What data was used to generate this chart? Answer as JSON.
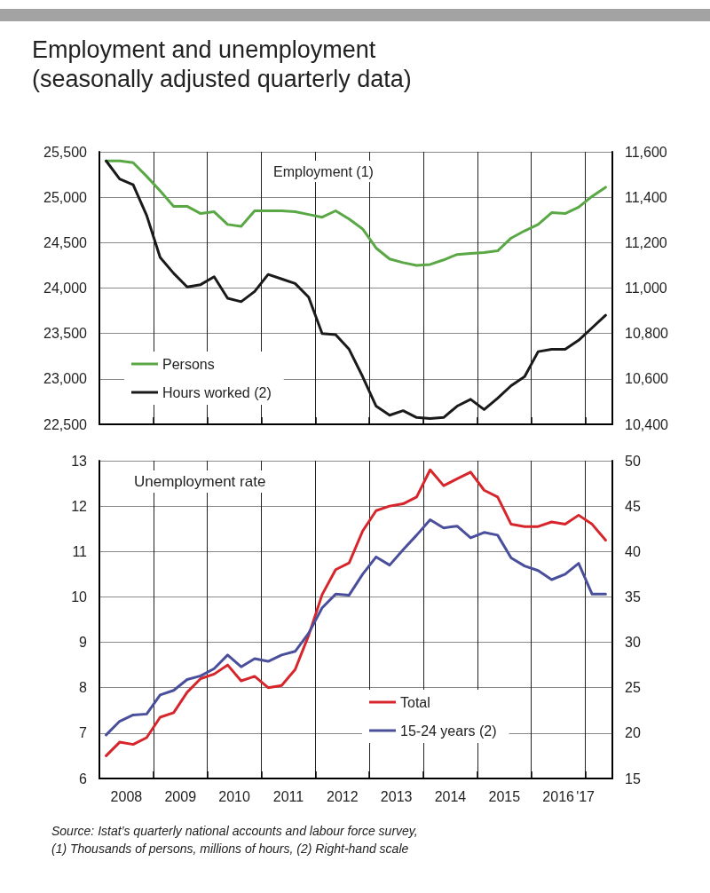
{
  "chart_data": [
    {
      "type": "line",
      "title": "Employment and unemployment",
      "subtitle": "(seasonally adjusted quarterly data)",
      "annotations": [
        "Employment (1)"
      ],
      "x": [
        2008.125,
        2008.375,
        2008.625,
        2008.875,
        2009.125,
        2009.375,
        2009.625,
        2009.875,
        2010.125,
        2010.375,
        2010.625,
        2010.875,
        2011.125,
        2011.375,
        2011.625,
        2011.875,
        2012.125,
        2012.375,
        2012.625,
        2012.875,
        2013.125,
        2013.375,
        2013.625,
        2013.875,
        2014.125,
        2014.375,
        2014.625,
        2014.875,
        2015.125,
        2015.375,
        2015.625,
        2015.875,
        2016.125,
        2016.375,
        2016.625,
        2016.875,
        2017.125,
        2017.375
      ],
      "xlim": [
        2008,
        2017.5
      ],
      "xticks": [
        {
          "value": 2009,
          "label": null
        },
        {
          "value": 2010,
          "label": null
        },
        {
          "value": 2011,
          "label": null
        },
        {
          "value": 2012,
          "label": null
        },
        {
          "value": 2013,
          "label": null
        },
        {
          "value": 2014,
          "label": null
        },
        {
          "value": 2015,
          "label": null
        },
        {
          "value": 2016,
          "label": null
        },
        {
          "value": 2017,
          "label": null
        }
      ],
      "ylim": [
        22500,
        25500
      ],
      "yticks": [
        {
          "value": 22500,
          "label": "22,500"
        },
        {
          "value": 23000,
          "label": "23,000"
        },
        {
          "value": 23500,
          "label": "23,500"
        },
        {
          "value": 24000,
          "label": "24,000"
        },
        {
          "value": 24500,
          "label": "24,500"
        },
        {
          "value": 25000,
          "label": "25,000"
        },
        {
          "value": 25500,
          "label": "25,500"
        }
      ],
      "y2lim": [
        10400,
        11600
      ],
      "y2ticks": [
        {
          "value": 10400,
          "label": "10,400"
        },
        {
          "value": 10600,
          "label": "10,600"
        },
        {
          "value": 10800,
          "label": "10,800"
        },
        {
          "value": 11000,
          "label": "11,000"
        },
        {
          "value": 11200,
          "label": "11,200"
        },
        {
          "value": 11400,
          "label": "11,400"
        },
        {
          "value": 11600,
          "label": "11,600"
        }
      ],
      "series": [
        {
          "name": "Persons",
          "color": "#5aa845",
          "values": [
            25400,
            25400,
            25380,
            25230,
            25070,
            24900,
            24900,
            24820,
            24840,
            24700,
            24680,
            24850,
            24850,
            24850,
            24840,
            24810,
            24780,
            24850,
            24760,
            24650,
            24440,
            24320,
            24280,
            24250,
            24260,
            24310,
            24370,
            24380,
            24390,
            24410,
            24550,
            24630,
            24700,
            24830,
            24820,
            24890,
            25010,
            25110
          ]
        },
        {
          "name": "Hours worked (2)",
          "color": "#1a1a1a",
          "axis": "y2",
          "values": [
            11560,
            11480,
            11455,
            11320,
            11135,
            11065,
            11005,
            11015,
            11050,
            10955,
            10940,
            10985,
            11060,
            11040,
            11020,
            10960,
            10800,
            10795,
            10730,
            10610,
            10480,
            10440,
            10460,
            10430,
            10425,
            10430,
            10480,
            10510,
            10465,
            10515,
            10570,
            10610,
            10720,
            10730,
            10730,
            10770,
            10825,
            10880
          ]
        }
      ],
      "grid": true,
      "legend": "bottom left",
      "marker": "none",
      "line_style": "solid",
      "tick_labels": "y"
    },
    {
      "type": "line",
      "title": "Unemployment rate",
      "annotations": [
        "Source: Istat’s quarterly national accounts and labour force survey,",
        "(1) Thousands of persons, millions of hours, (2) Right-hand scale"
      ],
      "x": [
        2008.125,
        2008.375,
        2008.625,
        2008.875,
        2009.125,
        2009.375,
        2009.625,
        2009.875,
        2010.125,
        2010.375,
        2010.625,
        2010.875,
        2011.125,
        2011.375,
        2011.625,
        2011.875,
        2012.125,
        2012.375,
        2012.625,
        2012.875,
        2013.125,
        2013.375,
        2013.625,
        2013.875,
        2014.125,
        2014.375,
        2014.625,
        2014.875,
        2015.125,
        2015.375,
        2015.625,
        2015.875,
        2016.125,
        2016.375,
        2016.625,
        2016.875,
        2017.125,
        2017.375
      ],
      "xlim": [
        2008,
        2017.5
      ],
      "xticks": [
        {
          "value": 2008.5,
          "label": "2008"
        },
        {
          "value": 2009,
          "label": null
        },
        {
          "value": 2009.5,
          "label": "2009"
        },
        {
          "value": 2010,
          "label": null
        },
        {
          "value": 2010.5,
          "label": "2010"
        },
        {
          "value": 2011,
          "label": null
        },
        {
          "value": 2011.5,
          "label": "2011"
        },
        {
          "value": 2012,
          "label": null
        },
        {
          "value": 2012.5,
          "label": "2012"
        },
        {
          "value": 2013,
          "label": null
        },
        {
          "value": 2013.5,
          "label": "2013"
        },
        {
          "value": 2014,
          "label": null
        },
        {
          "value": 2014.5,
          "label": "2014"
        },
        {
          "value": 2015,
          "label": null
        },
        {
          "value": 2015.5,
          "label": "2015"
        },
        {
          "value": 2016,
          "label": null
        },
        {
          "value": 2016.5,
          "label": "2016"
        },
        {
          "value": 2017,
          "label": "'17"
        }
      ],
      "ylim": [
        6,
        13
      ],
      "yticks": [
        6,
        7,
        8,
        9,
        10,
        11,
        12,
        13
      ],
      "y2lim": [
        15,
        50
      ],
      "y2ticks": [
        15,
        20,
        25,
        30,
        35,
        40,
        45,
        50
      ],
      "series": [
        {
          "name": "Total",
          "color": "#d7262b",
          "values": [
            6.5,
            6.8,
            6.75,
            6.9,
            7.35,
            7.45,
            7.9,
            8.2,
            8.3,
            8.5,
            8.15,
            8.25,
            8.0,
            8.05,
            8.4,
            9.15,
            10.05,
            10.6,
            10.75,
            11.45,
            11.9,
            12.0,
            12.05,
            12.2,
            12.8,
            12.45,
            12.6,
            12.75,
            12.35,
            12.2,
            11.6,
            11.55,
            11.55,
            11.65,
            11.6,
            11.8,
            11.6,
            11.25
          ]
        },
        {
          "name": "15-24 years (2)",
          "color": "#4a4f9c",
          "axis": "y2",
          "values": [
            19.8,
            21.3,
            22.0,
            22.1,
            24.2,
            24.7,
            25.9,
            26.3,
            27.1,
            28.6,
            27.3,
            28.2,
            27.9,
            28.6,
            29.0,
            31.0,
            33.8,
            35.3,
            35.2,
            37.5,
            39.4,
            38.5,
            40.2,
            41.8,
            43.5,
            42.6,
            42.8,
            41.5,
            42.1,
            41.8,
            39.3,
            38.4,
            37.9,
            36.9,
            37.5,
            38.7,
            35.3,
            35.3
          ]
        }
      ],
      "grid": true,
      "legend": "bottom right",
      "marker": "none",
      "line_style": "solid"
    }
  ]
}
